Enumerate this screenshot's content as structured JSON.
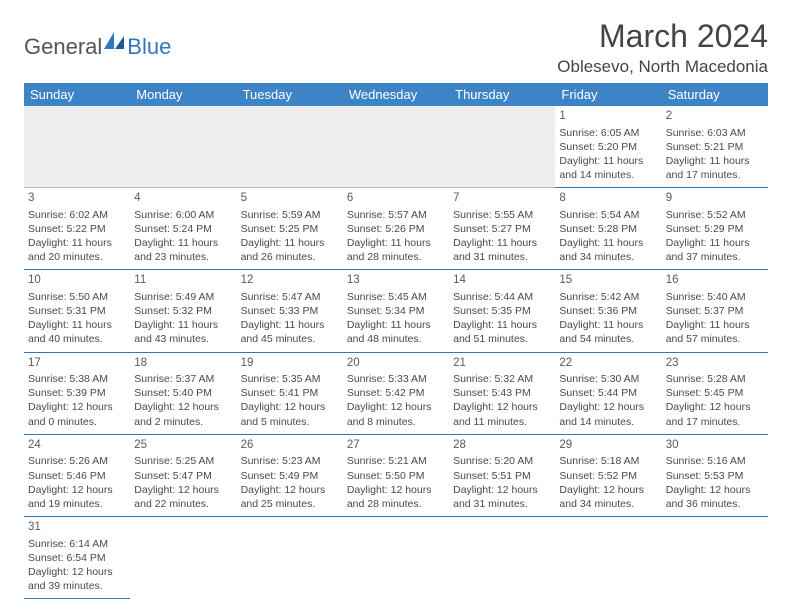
{
  "logo": {
    "part1": "General",
    "part2": "Blue",
    "accent": "#2f78bd"
  },
  "title": "March 2024",
  "location": "Oblesevo, North Macedonia",
  "colors": {
    "header_bg": "#3d84c6",
    "header_text": "#ffffff",
    "rule": "#2f78bd",
    "empty_bg": "#eeeeee",
    "text": "#4a4a4a"
  },
  "weekdays": [
    "Sunday",
    "Monday",
    "Tuesday",
    "Wednesday",
    "Thursday",
    "Friday",
    "Saturday"
  ],
  "weeks": [
    [
      null,
      null,
      null,
      null,
      null,
      {
        "n": "1",
        "sr": "Sunrise: 6:05 AM",
        "ss": "Sunset: 5:20 PM",
        "dl": "Daylight: 11 hours and 14 minutes."
      },
      {
        "n": "2",
        "sr": "Sunrise: 6:03 AM",
        "ss": "Sunset: 5:21 PM",
        "dl": "Daylight: 11 hours and 17 minutes."
      }
    ],
    [
      {
        "n": "3",
        "sr": "Sunrise: 6:02 AM",
        "ss": "Sunset: 5:22 PM",
        "dl": "Daylight: 11 hours and 20 minutes."
      },
      {
        "n": "4",
        "sr": "Sunrise: 6:00 AM",
        "ss": "Sunset: 5:24 PM",
        "dl": "Daylight: 11 hours and 23 minutes."
      },
      {
        "n": "5",
        "sr": "Sunrise: 5:59 AM",
        "ss": "Sunset: 5:25 PM",
        "dl": "Daylight: 11 hours and 26 minutes."
      },
      {
        "n": "6",
        "sr": "Sunrise: 5:57 AM",
        "ss": "Sunset: 5:26 PM",
        "dl": "Daylight: 11 hours and 28 minutes."
      },
      {
        "n": "7",
        "sr": "Sunrise: 5:55 AM",
        "ss": "Sunset: 5:27 PM",
        "dl": "Daylight: 11 hours and 31 minutes."
      },
      {
        "n": "8",
        "sr": "Sunrise: 5:54 AM",
        "ss": "Sunset: 5:28 PM",
        "dl": "Daylight: 11 hours and 34 minutes."
      },
      {
        "n": "9",
        "sr": "Sunrise: 5:52 AM",
        "ss": "Sunset: 5:29 PM",
        "dl": "Daylight: 11 hours and 37 minutes."
      }
    ],
    [
      {
        "n": "10",
        "sr": "Sunrise: 5:50 AM",
        "ss": "Sunset: 5:31 PM",
        "dl": "Daylight: 11 hours and 40 minutes."
      },
      {
        "n": "11",
        "sr": "Sunrise: 5:49 AM",
        "ss": "Sunset: 5:32 PM",
        "dl": "Daylight: 11 hours and 43 minutes."
      },
      {
        "n": "12",
        "sr": "Sunrise: 5:47 AM",
        "ss": "Sunset: 5:33 PM",
        "dl": "Daylight: 11 hours and 45 minutes."
      },
      {
        "n": "13",
        "sr": "Sunrise: 5:45 AM",
        "ss": "Sunset: 5:34 PM",
        "dl": "Daylight: 11 hours and 48 minutes."
      },
      {
        "n": "14",
        "sr": "Sunrise: 5:44 AM",
        "ss": "Sunset: 5:35 PM",
        "dl": "Daylight: 11 hours and 51 minutes."
      },
      {
        "n": "15",
        "sr": "Sunrise: 5:42 AM",
        "ss": "Sunset: 5:36 PM",
        "dl": "Daylight: 11 hours and 54 minutes."
      },
      {
        "n": "16",
        "sr": "Sunrise: 5:40 AM",
        "ss": "Sunset: 5:37 PM",
        "dl": "Daylight: 11 hours and 57 minutes."
      }
    ],
    [
      {
        "n": "17",
        "sr": "Sunrise: 5:38 AM",
        "ss": "Sunset: 5:39 PM",
        "dl": "Daylight: 12 hours and 0 minutes."
      },
      {
        "n": "18",
        "sr": "Sunrise: 5:37 AM",
        "ss": "Sunset: 5:40 PM",
        "dl": "Daylight: 12 hours and 2 minutes."
      },
      {
        "n": "19",
        "sr": "Sunrise: 5:35 AM",
        "ss": "Sunset: 5:41 PM",
        "dl": "Daylight: 12 hours and 5 minutes."
      },
      {
        "n": "20",
        "sr": "Sunrise: 5:33 AM",
        "ss": "Sunset: 5:42 PM",
        "dl": "Daylight: 12 hours and 8 minutes."
      },
      {
        "n": "21",
        "sr": "Sunrise: 5:32 AM",
        "ss": "Sunset: 5:43 PM",
        "dl": "Daylight: 12 hours and 11 minutes."
      },
      {
        "n": "22",
        "sr": "Sunrise: 5:30 AM",
        "ss": "Sunset: 5:44 PM",
        "dl": "Daylight: 12 hours and 14 minutes."
      },
      {
        "n": "23",
        "sr": "Sunrise: 5:28 AM",
        "ss": "Sunset: 5:45 PM",
        "dl": "Daylight: 12 hours and 17 minutes."
      }
    ],
    [
      {
        "n": "24",
        "sr": "Sunrise: 5:26 AM",
        "ss": "Sunset: 5:46 PM",
        "dl": "Daylight: 12 hours and 19 minutes."
      },
      {
        "n": "25",
        "sr": "Sunrise: 5:25 AM",
        "ss": "Sunset: 5:47 PM",
        "dl": "Daylight: 12 hours and 22 minutes."
      },
      {
        "n": "26",
        "sr": "Sunrise: 5:23 AM",
        "ss": "Sunset: 5:49 PM",
        "dl": "Daylight: 12 hours and 25 minutes."
      },
      {
        "n": "27",
        "sr": "Sunrise: 5:21 AM",
        "ss": "Sunset: 5:50 PM",
        "dl": "Daylight: 12 hours and 28 minutes."
      },
      {
        "n": "28",
        "sr": "Sunrise: 5:20 AM",
        "ss": "Sunset: 5:51 PM",
        "dl": "Daylight: 12 hours and 31 minutes."
      },
      {
        "n": "29",
        "sr": "Sunrise: 5:18 AM",
        "ss": "Sunset: 5:52 PM",
        "dl": "Daylight: 12 hours and 34 minutes."
      },
      {
        "n": "30",
        "sr": "Sunrise: 5:16 AM",
        "ss": "Sunset: 5:53 PM",
        "dl": "Daylight: 12 hours and 36 minutes."
      }
    ],
    [
      {
        "n": "31",
        "sr": "Sunrise: 6:14 AM",
        "ss": "Sunset: 6:54 PM",
        "dl": "Daylight: 12 hours and 39 minutes."
      },
      null,
      null,
      null,
      null,
      null,
      null
    ]
  ]
}
